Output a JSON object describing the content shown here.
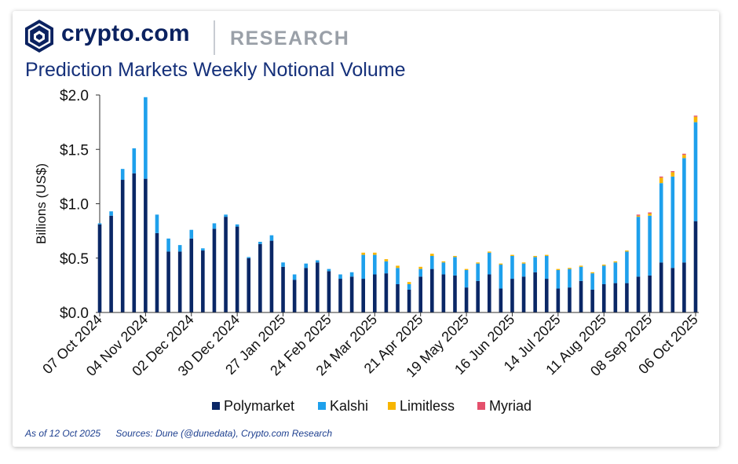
{
  "brand": {
    "name": "crypto.com",
    "division": "RESEARCH"
  },
  "chart_title": "Prediction Markets Weekly Notional Volume",
  "footer": {
    "as_of": "As of 12 Oct 2025",
    "sources": "Sources: Dune (@dunedata), Crypto.com Research"
  },
  "colors": {
    "polymarket": "#0a2766",
    "kalshi": "#1ea0ec",
    "limitless": "#f7b500",
    "myriad": "#e4506c"
  },
  "chart_data": {
    "type": "bar",
    "stacked": true,
    "ylabel": "Billions (US$)",
    "ylim": [
      0,
      2.0
    ],
    "yticks": [
      0.0,
      0.5,
      1.0,
      1.5,
      2.0
    ],
    "ytick_labels": [
      "$0.0",
      "$0.5",
      "$1.0",
      "$1.5",
      "$2.0"
    ],
    "categories": [
      "07 Oct 2024",
      "14 Oct 2024",
      "21 Oct 2024",
      "28 Oct 2024",
      "04 Nov 2024",
      "11 Nov 2024",
      "18 Nov 2024",
      "25 Nov 2024",
      "02 Dec 2024",
      "09 Dec 2024",
      "16 Dec 2024",
      "23 Dec 2024",
      "30 Dec 2024",
      "06 Jan 2025",
      "13 Jan 2025",
      "20 Jan 2025",
      "27 Jan 2025",
      "03 Feb 2025",
      "10 Feb 2025",
      "17 Feb 2025",
      "24 Feb 2025",
      "03 Mar 2025",
      "10 Mar 2025",
      "17 Mar 2025",
      "24 Mar 2025",
      "31 Mar 2025",
      "07 Apr 2025",
      "14 Apr 2025",
      "21 Apr 2025",
      "28 Apr 2025",
      "05 May 2025",
      "12 May 2025",
      "19 May 2025",
      "26 May 2025",
      "02 Jun 2025",
      "09 Jun 2025",
      "16 Jun 2025",
      "23 Jun 2025",
      "30 Jun 2025",
      "07 Jul 2025",
      "14 Jul 2025",
      "21 Jul 2025",
      "28 Jul 2025",
      "04 Aug 2025",
      "11 Aug 2025",
      "18 Aug 2025",
      "25 Aug 2025",
      "01 Sep 2025",
      "08 Sep 2025",
      "15 Sep 2025",
      "22 Sep 2025",
      "29 Sep 2025",
      "06 Oct 2025"
    ],
    "x_tick_labels": [
      "07 Oct 2024",
      "04 Nov 2024",
      "02 Dec 2024",
      "30 Dec 2024",
      "27 Jan 2025",
      "24 Feb 2025",
      "24 Mar 2025",
      "21 Apr 2025",
      "19 May 2025",
      "16 Jun 2025",
      "14 Jul 2025",
      "11 Aug 2025",
      "08 Sep 2025",
      "06 Oct 2025"
    ],
    "series": [
      {
        "name": "Polymarket",
        "values": [
          0.81,
          0.89,
          1.22,
          1.28,
          1.23,
          0.73,
          0.56,
          0.56,
          0.68,
          0.57,
          0.77,
          0.88,
          0.79,
          0.5,
          0.63,
          0.66,
          0.42,
          0.3,
          0.41,
          0.46,
          0.38,
          0.31,
          0.33,
          0.31,
          0.35,
          0.36,
          0.26,
          0.21,
          0.33,
          0.4,
          0.35,
          0.34,
          0.23,
          0.29,
          0.35,
          0.22,
          0.31,
          0.33,
          0.37,
          0.31,
          0.22,
          0.23,
          0.29,
          0.21,
          0.26,
          0.27,
          0.27,
          0.33,
          0.34,
          0.46,
          0.41,
          0.46,
          0.84
        ]
      },
      {
        "name": "Kalshi",
        "values": [
          0.01,
          0.04,
          0.1,
          0.23,
          0.75,
          0.17,
          0.12,
          0.06,
          0.08,
          0.02,
          0.05,
          0.02,
          0.02,
          0.01,
          0.02,
          0.05,
          0.04,
          0.05,
          0.04,
          0.02,
          0.02,
          0.04,
          0.04,
          0.22,
          0.18,
          0.11,
          0.15,
          0.05,
          0.07,
          0.12,
          0.11,
          0.17,
          0.16,
          0.16,
          0.2,
          0.22,
          0.21,
          0.12,
          0.14,
          0.21,
          0.17,
          0.17,
          0.13,
          0.15,
          0.17,
          0.19,
          0.29,
          0.55,
          0.55,
          0.73,
          0.84,
          0.96,
          0.91
        ]
      },
      {
        "name": "Limitless",
        "values": [
          0,
          0,
          0,
          0,
          0,
          0,
          0,
          0,
          0,
          0,
          0,
          0,
          0,
          0,
          0,
          0,
          0,
          0,
          0,
          0,
          0,
          0,
          0,
          0.02,
          0.02,
          0.02,
          0.02,
          0.02,
          0.02,
          0.02,
          0.01,
          0.01,
          0.01,
          0.01,
          0.01,
          0.01,
          0.01,
          0.01,
          0.01,
          0.01,
          0.01,
          0.01,
          0.01,
          0.01,
          0.01,
          0.01,
          0.01,
          0.01,
          0.02,
          0.05,
          0.04,
          0.03,
          0.05
        ]
      },
      {
        "name": "Myriad",
        "values": [
          0,
          0,
          0,
          0,
          0,
          0,
          0,
          0,
          0,
          0,
          0,
          0,
          0,
          0,
          0,
          0,
          0,
          0,
          0,
          0,
          0,
          0,
          0,
          0,
          0,
          0,
          0,
          0,
          0,
          0,
          0,
          0,
          0,
          0,
          0,
          0,
          0,
          0,
          0,
          0,
          0,
          0,
          0,
          0,
          0,
          0,
          0,
          0.01,
          0.01,
          0.01,
          0.01,
          0.01,
          0.01
        ]
      }
    ],
    "legend": {
      "position": "bottom",
      "entries": [
        "Polymarket",
        "Kalshi",
        "Limitless",
        "Myriad"
      ]
    }
  }
}
